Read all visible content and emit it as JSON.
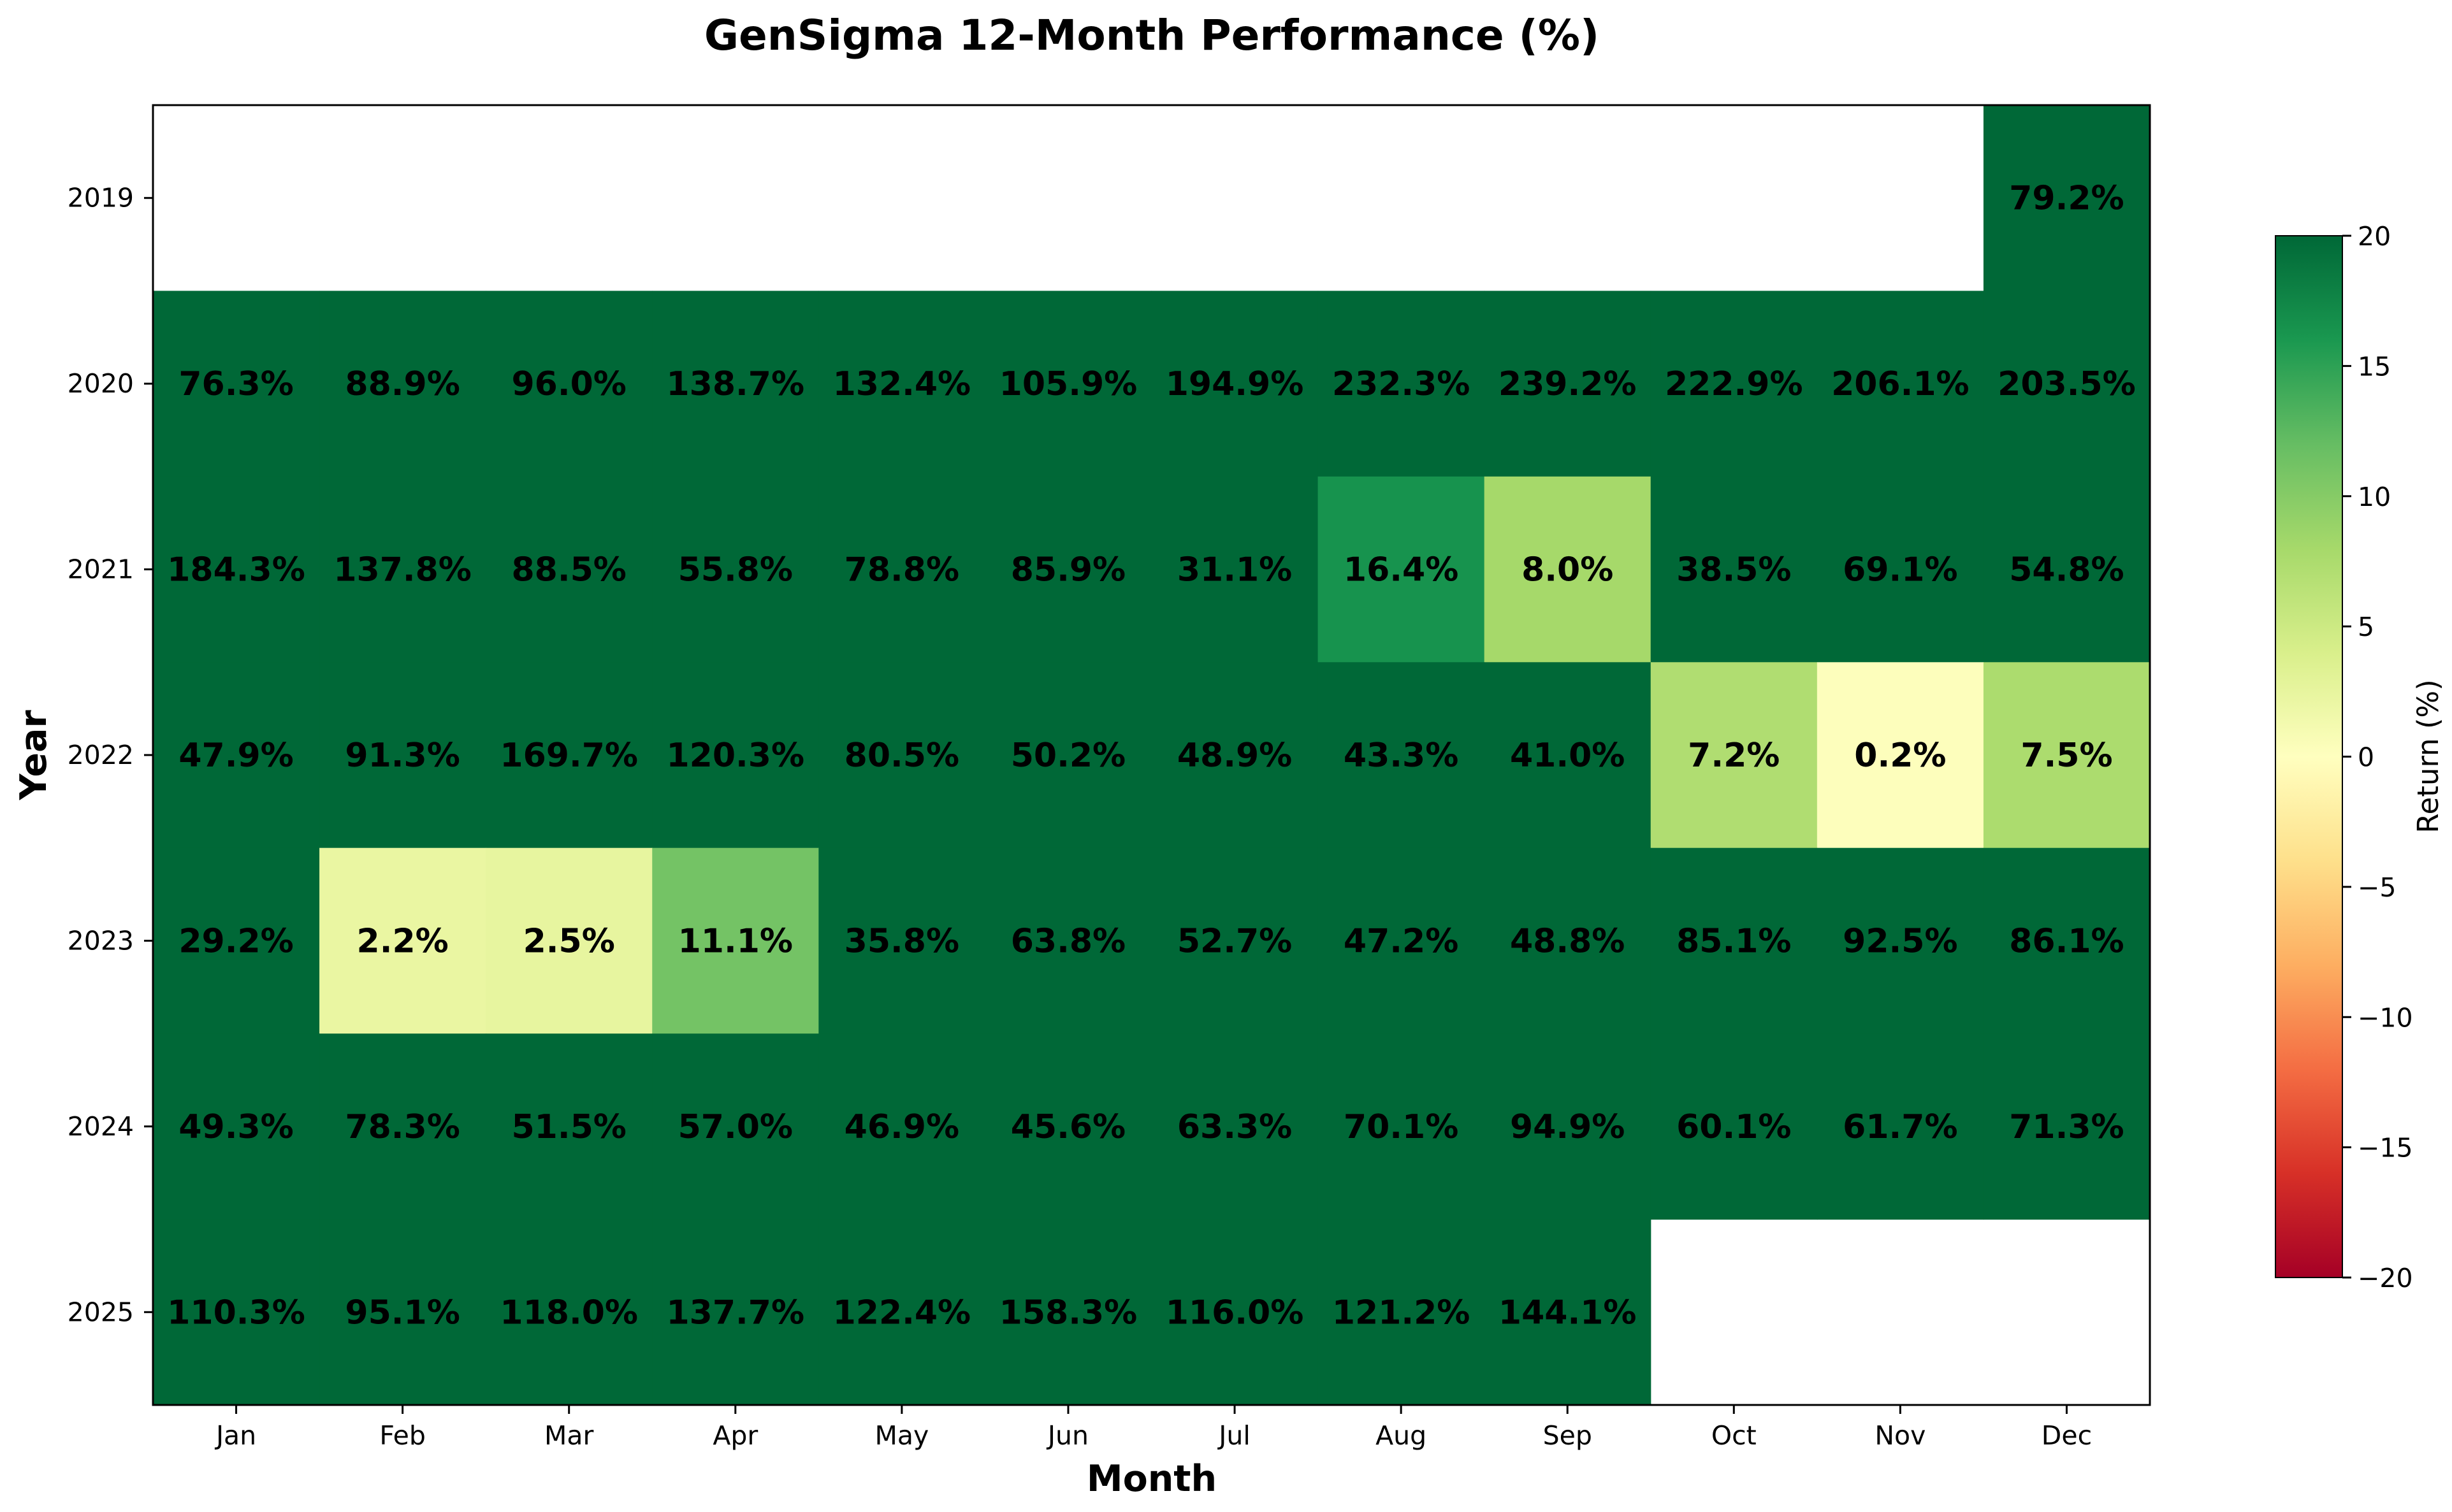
{
  "chart_data": {
    "type": "heatmap",
    "title": "GenSigma 12-Month Performance (%)",
    "xlabel": "Month",
    "ylabel": "Year",
    "x_categories": [
      "Jan",
      "Feb",
      "Mar",
      "Apr",
      "May",
      "Jun",
      "Jul",
      "Aug",
      "Sep",
      "Oct",
      "Nov",
      "Dec"
    ],
    "y_categories": [
      "2019",
      "2020",
      "2021",
      "2022",
      "2023",
      "2024",
      "2025"
    ],
    "values": [
      [
        null,
        null,
        null,
        null,
        null,
        null,
        null,
        null,
        null,
        null,
        null,
        79.2
      ],
      [
        76.3,
        88.9,
        96.0,
        138.7,
        132.4,
        105.9,
        194.9,
        232.3,
        239.2,
        222.9,
        206.1,
        203.5
      ],
      [
        184.3,
        137.8,
        88.5,
        55.8,
        78.8,
        85.9,
        31.1,
        16.4,
        8.0,
        38.5,
        69.1,
        54.8
      ],
      [
        47.9,
        91.3,
        169.7,
        120.3,
        80.5,
        50.2,
        48.9,
        43.3,
        41.0,
        7.2,
        0.2,
        7.5
      ],
      [
        29.2,
        2.2,
        2.5,
        11.1,
        35.8,
        63.8,
        52.7,
        47.2,
        48.8,
        85.1,
        92.5,
        86.1
      ],
      [
        49.3,
        78.3,
        51.5,
        57.0,
        46.9,
        45.6,
        63.3,
        70.1,
        94.9,
        60.1,
        61.7,
        71.3
      ],
      [
        110.3,
        95.1,
        118.0,
        137.7,
        122.4,
        158.3,
        116.0,
        121.2,
        144.1,
        null,
        null,
        null
      ]
    ],
    "value_suffix": "%",
    "colorbar": {
      "label": "Return (%)",
      "colormap": "RdYlGn",
      "vmin": -20,
      "vmax": 20,
      "ticks": [
        -20,
        -15,
        -10,
        -5,
        0,
        5,
        10,
        15,
        20
      ],
      "tick_labels": [
        "−20",
        "−15",
        "−10",
        "−5",
        "0",
        "5",
        "10",
        "15",
        "20"
      ]
    },
    "grid": false
  }
}
